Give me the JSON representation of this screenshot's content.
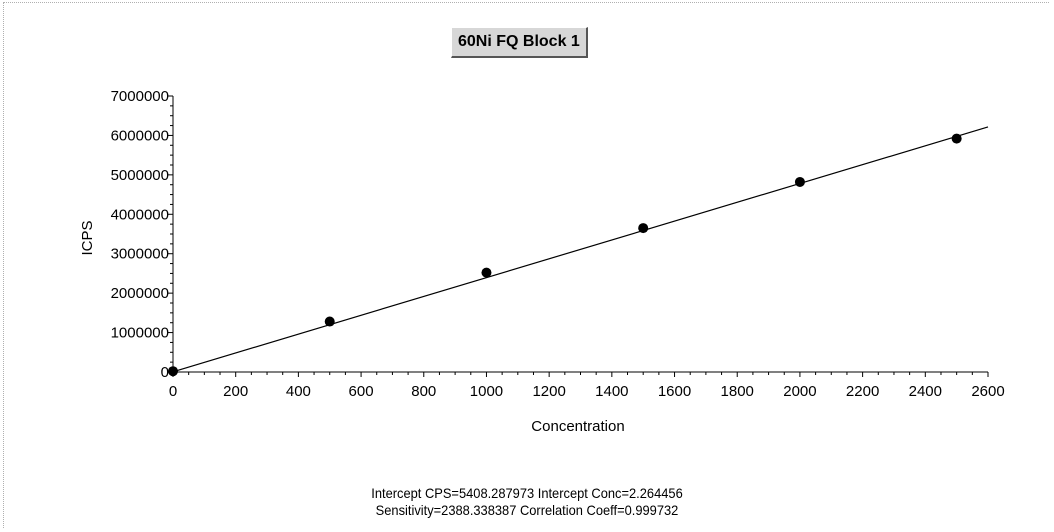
{
  "chart_data": {
    "type": "scatter",
    "title": "60Ni FQ Block 1",
    "xlabel": "Concentration",
    "ylabel": "ICPS",
    "xlim": [
      0,
      2600
    ],
    "ylim": [
      0,
      7000000
    ],
    "x_ticks": [
      0,
      200,
      400,
      600,
      800,
      1000,
      1200,
      1400,
      1600,
      1800,
      2000,
      2200,
      2400,
      2600
    ],
    "y_ticks": [
      0,
      1000000,
      2000000,
      3000000,
      4000000,
      5000000,
      6000000,
      7000000
    ],
    "grid": false,
    "series": [
      {
        "x": [
          0,
          500,
          1000,
          1500,
          2000,
          2500
        ],
        "y": [
          20000,
          1280000,
          2520000,
          3650000,
          4820000,
          5920000
        ],
        "marker": "filled-circle",
        "color": "#000000"
      }
    ],
    "fit_line": {
      "intercept": 5408.287973,
      "slope": 2388.338387,
      "x_range": [
        0,
        2600
      ],
      "color": "#000000"
    },
    "annotations": [
      "Intercept CPS=5408.287973  Intercept Conc=2.264456",
      "Sensitivity=2388.338387  Correlation Coeff=0.999732"
    ]
  }
}
